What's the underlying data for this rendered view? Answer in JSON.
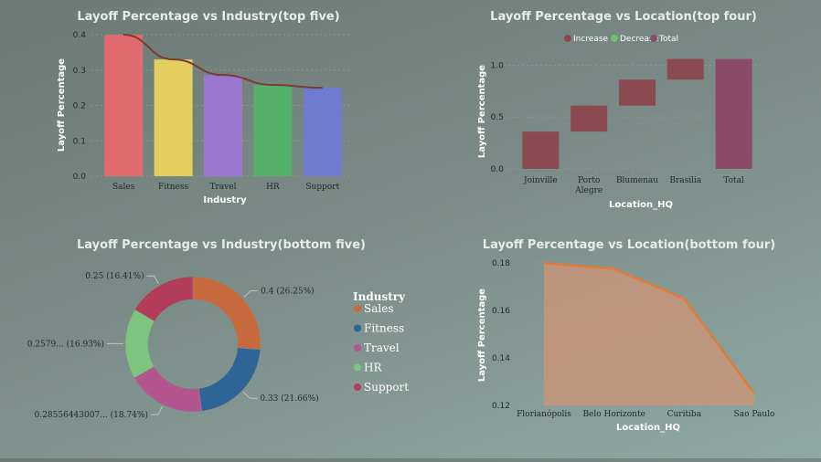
{
  "colors": {
    "sales": "#e06a6e",
    "fitness": "#e4cf5e",
    "travel": "#9b77cf",
    "hr": "#54b06a",
    "support": "#6f7bce",
    "trend": "#7a3d30",
    "wf_increase": "#8b4a4f",
    "wf_decrease": "#6fbf73",
    "wf_total": "#8a4a68",
    "donut_sales": "#c6693c",
    "donut_fitness": "#2f6596",
    "donut_travel": "#b4558f",
    "donut_hr": "#7dc47e",
    "donut_support": "#b23c5a",
    "area_fill": "#c79579",
    "area_line": "#e07b39"
  },
  "chart_data": [
    {
      "id": "top_industry",
      "type": "bar",
      "title": "Layoff Percentage vs Industry(top five)",
      "xlabel": "Industry",
      "ylabel": "Layoff Percentage",
      "categories": [
        "Sales",
        "Fitness",
        "Travel",
        "HR",
        "Support"
      ],
      "values": [
        0.4,
        0.33,
        0.286,
        0.258,
        0.25
      ],
      "trend": [
        0.4,
        0.33,
        0.286,
        0.258,
        0.25
      ],
      "ylim": [
        0,
        0.4
      ],
      "yticks": [
        "0.0",
        "0.1",
        "0.2",
        "0.3",
        "0.4"
      ],
      "grid": true
    },
    {
      "id": "top_location",
      "type": "bar",
      "subtype": "waterfall",
      "title": "Layoff Percentage vs Location(top four)",
      "xlabel": "Location_HQ",
      "ylabel": "Layoff Percentage",
      "legend": [
        "Increase",
        "Decrease",
        "Total"
      ],
      "legend_position": "top-center",
      "categories": [
        "Joinville",
        "Porto Alegre",
        "Blumenau",
        "Brasilia",
        "Total"
      ],
      "category_lines": [
        [
          "Joinville"
        ],
        [
          "Porto",
          "Alegre"
        ],
        [
          "Blumenau"
        ],
        [
          "Brasilia"
        ],
        [
          "Total"
        ]
      ],
      "values": [
        0.36,
        0.25,
        0.25,
        0.2,
        1.06
      ],
      "ylim": [
        0,
        1.1
      ],
      "yticks": [
        "0.0",
        "0.5",
        "1.0"
      ],
      "grid": true
    },
    {
      "id": "bottom_industry",
      "type": "pie",
      "subtype": "donut",
      "title": "Layoff Percentage vs Industry(bottom five)",
      "legend_title": "Industry",
      "legend_position": "right",
      "categories": [
        "Sales",
        "Fitness",
        "Travel",
        "HR",
        "Support"
      ],
      "values": [
        0.4,
        0.33,
        0.28556443007,
        0.2579,
        0.25
      ],
      "labels": [
        "0.4 (26.25%)",
        "0.33 (21.66%)",
        "0.28556443007... (18.74%)",
        "0.2579... (16.93%)",
        "0.25 (16.41%)"
      ]
    },
    {
      "id": "bottom_location",
      "type": "area",
      "title": "Layoff Percentage vs Location(bottom four)",
      "xlabel": "Location_HQ",
      "ylabel": "Layoff Percentage",
      "categories": [
        "Florianópolis",
        "Belo Horizonte",
        "Curitiba",
        "Sao Paulo"
      ],
      "values": [
        0.18,
        0.1775,
        0.165,
        0.125
      ],
      "ylim": [
        0.12,
        0.18
      ],
      "yticks": [
        "0.12",
        "0.14",
        "0.16",
        "0.18"
      ],
      "grid": true
    }
  ]
}
